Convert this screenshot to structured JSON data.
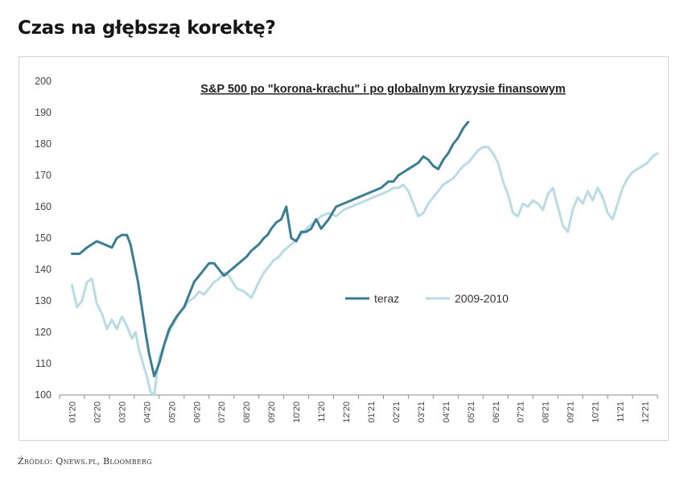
{
  "headline": "Czas na głębszą korektę?",
  "source": "Źródło: Qnews.pl, Bloomberg",
  "colors": {
    "teraz": "#3a7d92",
    "crisis": "#b9dbe6"
  },
  "chart_data": {
    "type": "line",
    "title": "S&P 500 po \"korona-krachu\" i po globalnym kryzysie finansowym",
    "xlabel": "",
    "ylabel": "",
    "ylim": [
      100,
      200
    ],
    "yticks": [
      100,
      110,
      120,
      130,
      140,
      150,
      160,
      170,
      180,
      190,
      200
    ],
    "categories": [
      "01'20",
      "02'20",
      "03'20",
      "04'20",
      "05'20",
      "06'20",
      "07'20",
      "08'20",
      "09'20",
      "10'20",
      "11'20",
      "12'20",
      "01'21",
      "02'21",
      "03'21",
      "04'21",
      "05'21",
      "06'21",
      "07'21",
      "08'21",
      "09'21",
      "10'21",
      "11'21",
      "12'21"
    ],
    "grid": false,
    "legend_position": "right-center",
    "series": [
      {
        "name": "teraz",
        "color": "#3a7d92",
        "x": [
          0,
          0.3,
          0.6,
          1.0,
          1.3,
          1.6,
          1.8,
          2.0,
          2.2,
          2.35,
          2.5,
          2.65,
          2.8,
          2.95,
          3.1,
          3.3,
          3.5,
          3.7,
          3.9,
          4.2,
          4.5,
          4.7,
          4.9,
          5.1,
          5.3,
          5.5,
          5.7,
          5.9,
          6.1,
          6.4,
          6.7,
          7.0,
          7.2,
          7.5,
          7.7,
          7.85,
          8.0,
          8.2,
          8.4,
          8.6,
          8.8,
          9.0,
          9.2,
          9.4,
          9.6,
          9.8,
          10.0,
          10.3,
          10.6,
          10.9,
          11.2,
          11.5,
          11.8,
          12.1,
          12.4,
          12.7,
          12.9,
          13.1,
          13.3,
          13.5,
          13.7,
          13.9,
          14.1,
          14.3,
          14.5,
          14.7,
          14.9,
          15.1,
          15.3,
          15.5,
          15.7,
          15.9
        ],
        "y": [
          145,
          145,
          147,
          149,
          148,
          147,
          150,
          151,
          151,
          148,
          142,
          136,
          128,
          120,
          113,
          106,
          110,
          116,
          121,
          125,
          128,
          132,
          136,
          138,
          140,
          142,
          142,
          140,
          138,
          140,
          142,
          144,
          146,
          148,
          150,
          151,
          153,
          155,
          156,
          160,
          150,
          149,
          152,
          152,
          153,
          156,
          153,
          156,
          160,
          161,
          162,
          163,
          164,
          165,
          166,
          168,
          168,
          170,
          171,
          172,
          173,
          174,
          176,
          175,
          173,
          172,
          175,
          177,
          180,
          182,
          185,
          187
        ]
      },
      {
        "name": "2009-2010",
        "color": "#b9dbe6",
        "x": [
          0,
          0.2,
          0.4,
          0.6,
          0.8,
          1.0,
          1.2,
          1.4,
          1.6,
          1.8,
          2.0,
          2.2,
          2.4,
          2.55,
          2.7,
          2.85,
          3.0,
          3.15,
          3.3,
          3.5,
          3.7,
          3.9,
          4.1,
          4.3,
          4.5,
          4.7,
          4.9,
          5.1,
          5.3,
          5.5,
          5.7,
          5.9,
          6.1,
          6.3,
          6.6,
          6.9,
          7.2,
          7.5,
          7.7,
          7.9,
          8.1,
          8.3,
          8.5,
          8.8,
          9.1,
          9.4,
          9.7,
          10.0,
          10.3,
          10.6,
          10.9,
          11.2,
          11.5,
          11.8,
          12.1,
          12.4,
          12.7,
          12.9,
          13.1,
          13.3,
          13.5,
          13.7,
          13.9,
          14.1,
          14.3,
          14.5,
          14.7,
          14.9,
          15.1,
          15.3,
          15.5,
          15.7,
          15.9,
          16.1,
          16.3,
          16.5,
          16.7,
          16.9,
          17.1,
          17.3,
          17.5,
          17.7,
          17.9,
          18.1,
          18.3,
          18.5,
          18.7,
          18.9,
          19.1,
          19.3,
          19.5,
          19.7,
          19.9,
          20.1,
          20.3,
          20.5,
          20.7,
          20.9,
          21.1,
          21.3,
          21.5,
          21.7,
          21.9,
          22.1,
          22.3,
          22.5,
          22.7,
          22.9,
          23.1,
          23.3,
          23.5
        ],
        "y": [
          135,
          128,
          130,
          136,
          137,
          129,
          126,
          121,
          124,
          121,
          125,
          122,
          118,
          120,
          114,
          110,
          106,
          101,
          100,
          112,
          116,
          120,
          123,
          126,
          128,
          130,
          131,
          133,
          132,
          134,
          136,
          137,
          139,
          138,
          134,
          133,
          131,
          136,
          139,
          141,
          143,
          144,
          146,
          148,
          150,
          153,
          155,
          157,
          158,
          157,
          159,
          160,
          161,
          162,
          163,
          164,
          165,
          166,
          166,
          167,
          165,
          161,
          157,
          158,
          161,
          163,
          165,
          167,
          168,
          169,
          171,
          173,
          174,
          176,
          178,
          179,
          179,
          177,
          174,
          168,
          164,
          158,
          157,
          161,
          160,
          162,
          161,
          159,
          164,
          166,
          160,
          154,
          152,
          159,
          163,
          161,
          165,
          162,
          166,
          163,
          158,
          156,
          161,
          166,
          169,
          171,
          172,
          173,
          174,
          176,
          177
        ]
      }
    ]
  }
}
